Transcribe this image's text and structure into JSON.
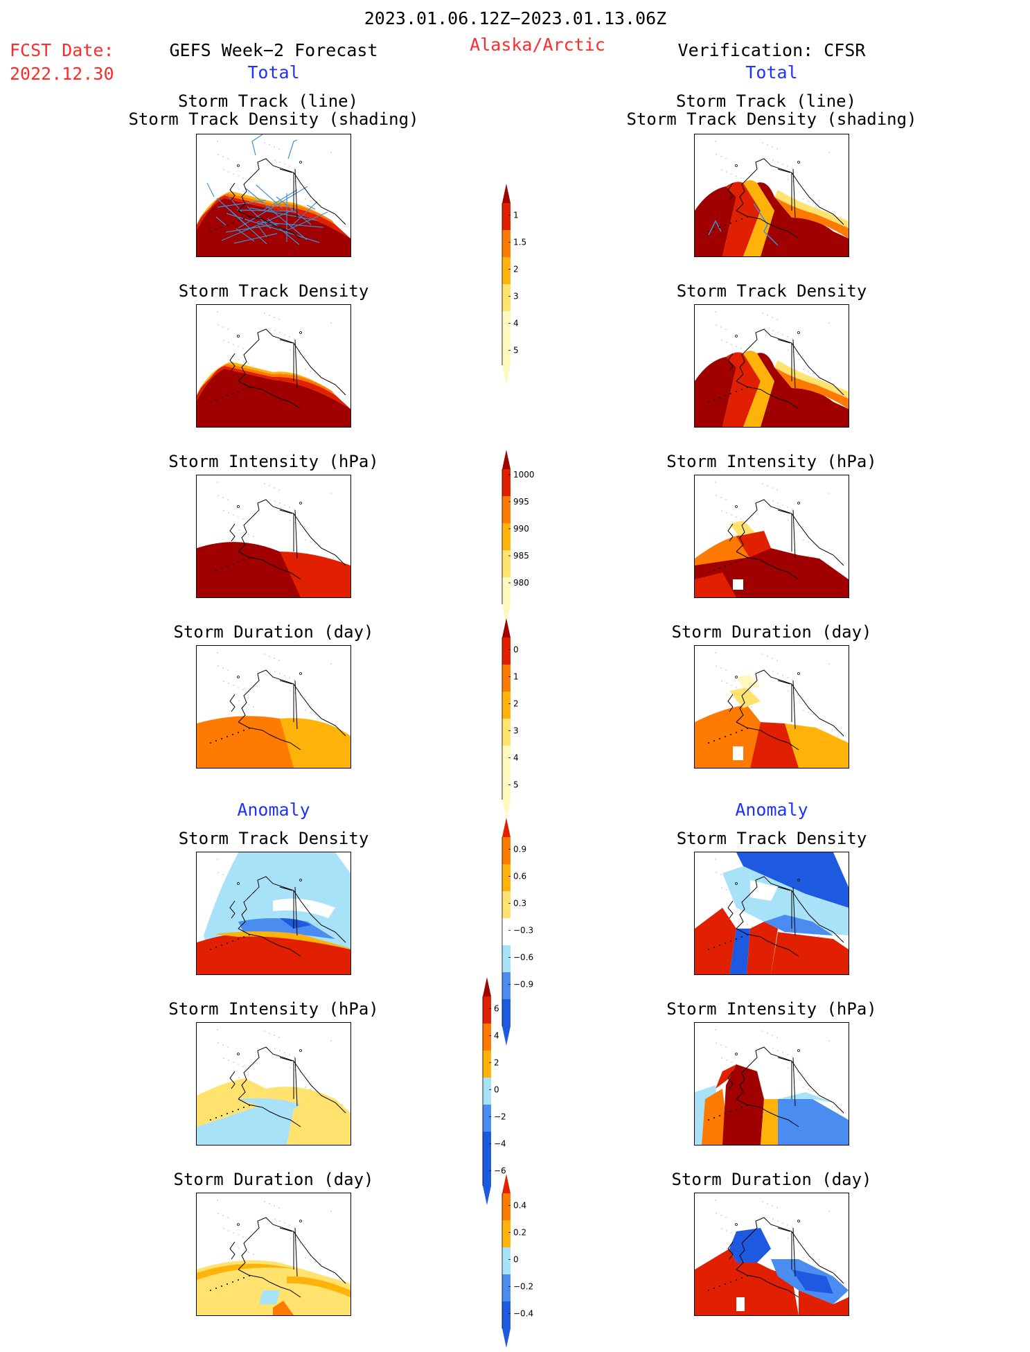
{
  "header": {
    "date_range": "2023.01.06.12Z−2023.01.13.06Z",
    "fcst_label": "FCST Date:",
    "fcst_date": "2022.12.30",
    "left_title": "GEFS Week−2 Forecast",
    "region": "Alaska/Arctic",
    "right_title": "Verification: CFSR",
    "total_label": "Total",
    "anomaly_label": "Anomaly"
  },
  "panel_titles": {
    "track_line": "Storm Track (line)",
    "track_shading": "Storm Track Density (shading)",
    "track_density": "Storm Track Density",
    "intensity": "Storm Intensity (hPa)",
    "duration": "Storm Duration (day)"
  },
  "colors": {
    "title_red": "#ff2a2a",
    "title_blue": "#1e32ff",
    "warm_scale": [
      "#fff9c0",
      "#ffe36e",
      "#ffb30a",
      "#ff7a00",
      "#e02000",
      "#a00000"
    ],
    "cool_scale": [
      "#1e5ae0",
      "#4b8cf0",
      "#a8e2f8"
    ],
    "track_line": "#3d8fd8"
  },
  "chart_data": [
    {
      "type": "heatmap",
      "title": "Total colorbar: Storm Track Density",
      "ticks": [
        1,
        1.5,
        2,
        3,
        4,
        5
      ],
      "tick_labels": [
        "1",
        "1.5",
        "2",
        "3",
        "4",
        "5"
      ],
      "extend": "both"
    },
    {
      "type": "heatmap",
      "title": "Total colorbar: Storm Intensity (hPa)",
      "ticks": [
        1000,
        995,
        990,
        985,
        980
      ],
      "tick_labels": [
        "1000",
        "995",
        "990",
        "985",
        "980"
      ],
      "extend": "both"
    },
    {
      "type": "heatmap",
      "title": "Total colorbar: Storm Duration (day)",
      "ticks": [
        0,
        1,
        2,
        3,
        4,
        5
      ],
      "tick_labels": [
        "0",
        "1",
        "2",
        "3",
        "4",
        "5"
      ],
      "extend": "both"
    },
    {
      "type": "heatmap",
      "title": "Anomaly colorbar: Storm Track Density",
      "ticks": [
        0.9,
        0.6,
        0.3,
        -0.3,
        -0.6,
        -0.9
      ],
      "tick_labels": [
        "0.9",
        "0.6",
        "0.3",
        "−0.3",
        "−0.6",
        "−0.9"
      ],
      "extend": "both"
    },
    {
      "type": "heatmap",
      "title": "Anomaly colorbar: Storm Intensity (hPa)",
      "ticks": [
        6,
        4,
        2,
        0,
        -2,
        -4,
        -6
      ],
      "tick_labels": [
        "6",
        "4",
        "2",
        "0",
        "−2",
        "−4",
        "−6"
      ],
      "extend": "both"
    },
    {
      "type": "heatmap",
      "title": "Anomaly colorbar: Storm Duration (day)",
      "ticks": [
        0.4,
        0.2,
        0,
        -0.2,
        -0.4
      ],
      "tick_labels": [
        "0.4",
        "0.2",
        "0",
        "−0.2",
        "−0.4"
      ],
      "extend": "both"
    }
  ]
}
